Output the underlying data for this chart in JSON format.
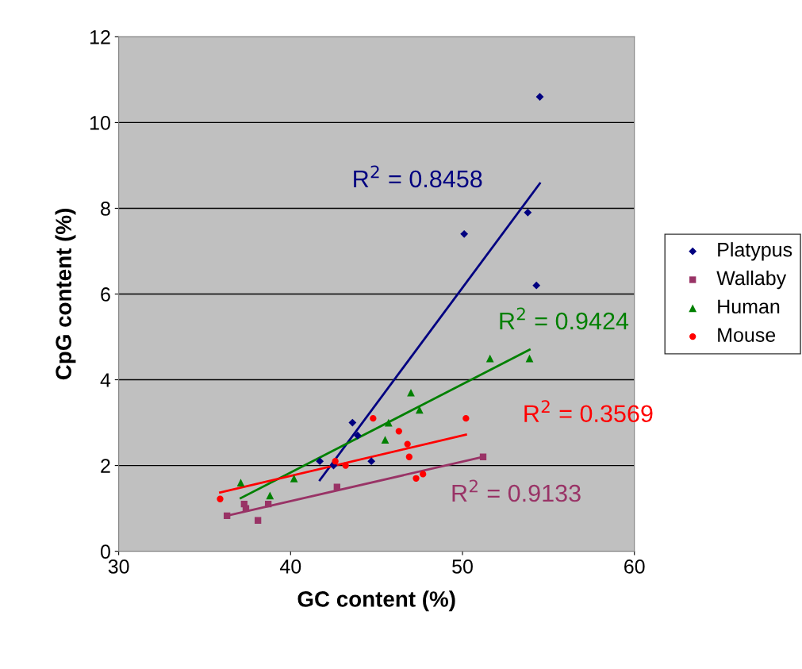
{
  "chart_data": {
    "type": "scatter",
    "xlabel": "GC content (%)",
    "ylabel": "CpG content (%)",
    "xlim": [
      30,
      60
    ],
    "xticks": [
      30,
      40,
      50,
      60
    ],
    "ylim": [
      0,
      12
    ],
    "yticks": [
      0,
      2,
      4,
      6,
      8,
      10,
      12
    ],
    "grid": "y",
    "legend": "right",
    "series": [
      {
        "name": "Platypus",
        "color": "#000080",
        "marker": "diamond",
        "x": [
          41.7,
          42.5,
          43.6,
          43.9,
          44.7,
          50.1,
          53.8,
          54.3,
          54.5
        ],
        "values": [
          2.1,
          2.0,
          3.0,
          2.7,
          2.1,
          7.4,
          7.9,
          6.2,
          10.6
        ]
      },
      {
        "name": "Wallaby",
        "color": "#993366",
        "marker": "square",
        "x": [
          36.3,
          37.3,
          37.4,
          38.1,
          38.7,
          42.7,
          51.2
        ],
        "values": [
          0.83,
          1.1,
          1.0,
          0.72,
          1.1,
          1.5,
          2.2
        ]
      },
      {
        "name": "Human",
        "color": "#008000",
        "marker": "triangle",
        "x": [
          37.1,
          38.8,
          40.2,
          45.5,
          45.7,
          47.0,
          47.5,
          51.6,
          53.9
        ],
        "values": [
          1.6,
          1.3,
          1.7,
          2.6,
          3.0,
          3.7,
          3.3,
          4.5,
          4.5
        ]
      },
      {
        "name": "Mouse",
        "color": "#ff0000",
        "marker": "circle",
        "x": [
          35.9,
          42.6,
          43.2,
          44.8,
          46.3,
          46.8,
          46.9,
          47.3,
          47.7,
          50.2
        ],
        "values": [
          1.22,
          2.1,
          2.0,
          3.1,
          2.8,
          2.5,
          2.2,
          1.7,
          1.8,
          3.1
        ]
      },
      {
        "type": "line",
        "color": "#000080",
        "marker": "none",
        "x": [
          41.7,
          54.5
        ],
        "values": [
          1.66,
          8.58
        ]
      },
      {
        "type": "line",
        "color": "#993366",
        "marker": "none",
        "x": [
          36.3,
          51.2
        ],
        "values": [
          0.83,
          2.2
        ]
      },
      {
        "type": "line",
        "color": "#008000",
        "marker": "none",
        "x": [
          37.1,
          53.9
        ],
        "values": [
          1.24,
          4.7
        ]
      },
      {
        "type": "line",
        "color": "#ff0000",
        "marker": "none",
        "x": [
          35.9,
          50.2
        ],
        "values": [
          1.37,
          2.72
        ]
      }
    ],
    "annotations": [
      "R$^{2}$ = 0.8458",
      "R$^{2}$ = 0.9133",
      "R$^{2}$ = 0.9424",
      "R$^{2}$ = 0.3569"
    ]
  }
}
